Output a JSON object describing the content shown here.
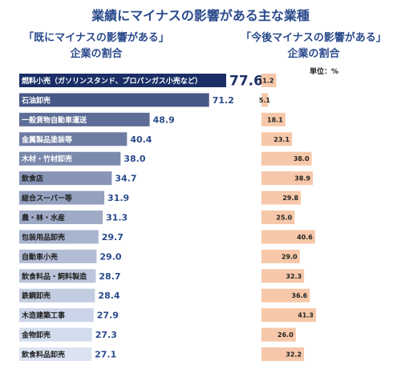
{
  "title": "業績にマイナスの影響がある主な業種",
  "left_heading": {
    "line1": "「既にマイナスの影響がある」",
    "line2": "企業の割合"
  },
  "right_heading": {
    "line1": "「今後マイナスの影響がある」",
    "line2": "企業の割合"
  },
  "unit_label": "単位：%",
  "colors": {
    "title": "#2a4a8c",
    "left_bar_dark": "#1b2f66",
    "left_bar_light": "#dbe3f3",
    "right_bar": "#f6c8a9"
  },
  "chart_data": {
    "type": "bar",
    "orientation": "horizontal",
    "categories": [
      "燃料小売（ガソリンスタンド、プロパンガス小売など）",
      "石油卸売",
      "一般貨物自動車運送",
      "金属製品塗装等",
      "木材・竹材卸売",
      "飲食店",
      "総合スーパー等",
      "農・林・水産",
      "包装用品卸売",
      "自動車小売",
      "飲食料品・飼料製造",
      "鉄鋼卸売",
      "木造建築工事",
      "金物卸売",
      "飲食料品卸売"
    ],
    "series": [
      {
        "name": "「既にマイナスの影響がある」企業の割合",
        "values": [
          77.6,
          71.2,
          48.9,
          40.4,
          38.0,
          34.7,
          31.9,
          31.3,
          29.7,
          29.0,
          28.7,
          28.4,
          27.9,
          27.3,
          27.1
        ],
        "labels": [
          "77.6",
          "71.2",
          "48.9",
          "40.4",
          "38.0",
          "34.7",
          "31.9",
          "31.3",
          "29.7",
          "29.0",
          "28.7",
          "28.4",
          "27.9",
          "27.3",
          "27.1"
        ]
      },
      {
        "name": "「今後マイナスの影響がある」企業の割合",
        "values": [
          11.2,
          5.1,
          18.1,
          23.1,
          38.0,
          38.9,
          29.8,
          25.0,
          40.6,
          29.0,
          32.3,
          36.6,
          41.3,
          26.0,
          32.2
        ],
        "labels": [
          "11.2",
          "5.1",
          "18.1",
          "23.1",
          "38.0",
          "38.9",
          "29.8",
          "25.0",
          "40.6",
          "29.0",
          "32.3",
          "36.6",
          "41.3",
          "26.0",
          "32.2"
        ]
      }
    ],
    "xlim_left": [
      0,
      77.6
    ],
    "xlim_right": [
      0,
      41.3
    ],
    "grid": false,
    "legend": "none"
  }
}
